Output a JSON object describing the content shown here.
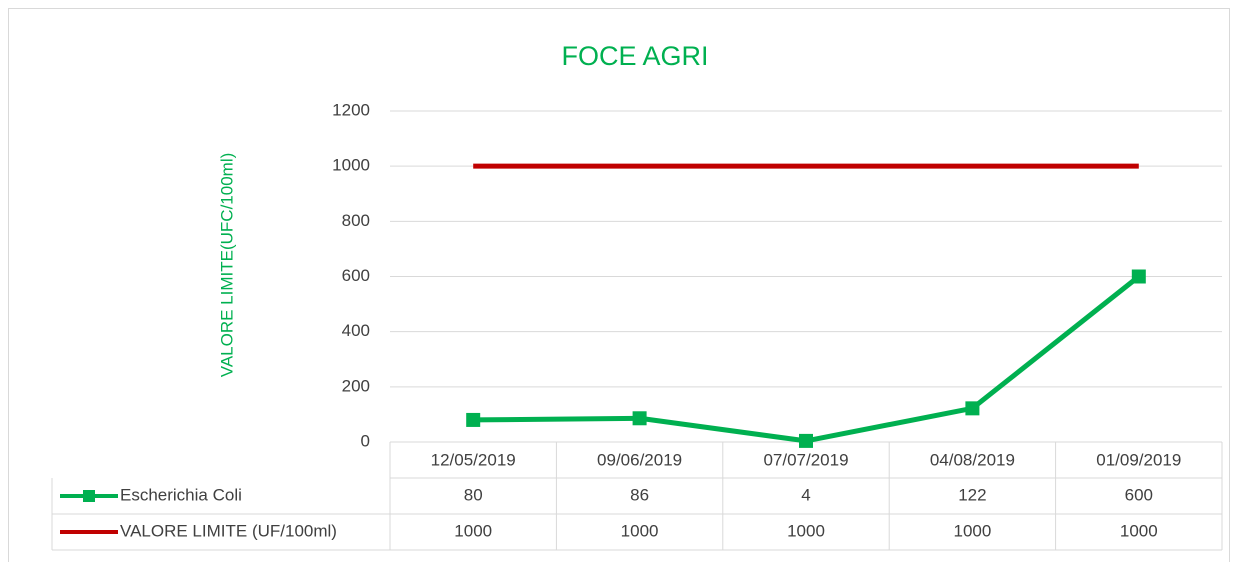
{
  "chart_data": {
    "type": "line",
    "title": "FOCE AGRI",
    "y_label": "VALORE LIMITE(UFC/100ml)",
    "categories": [
      "12/05/2019",
      "09/06/2019",
      "07/07/2019",
      "04/08/2019",
      "01/09/2019"
    ],
    "series": [
      {
        "name": "Escherichia Coli",
        "color": "#00b050",
        "marker": "square",
        "values": [
          80,
          86,
          4,
          122,
          600
        ]
      },
      {
        "name": "VALORE LIMITE (UF/100ml)",
        "color": "#c00000",
        "values": [
          1000,
          1000,
          1000,
          1000,
          1000
        ]
      }
    ],
    "ylim": [
      0,
      1200
    ],
    "yticks": [
      0,
      200,
      400,
      600,
      800,
      1000,
      1200
    ],
    "grid": true,
    "data_table": true
  }
}
